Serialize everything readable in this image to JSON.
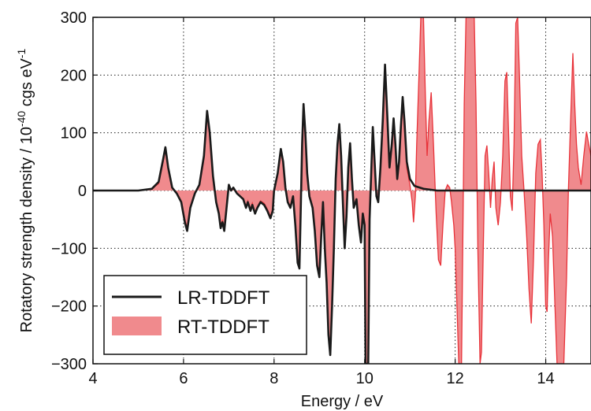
{
  "chart_data": {
    "type": "line",
    "xlabel": "Energy / eV",
    "ylabel_main": "Rotatory strength density / 10",
    "ylabel_exp": "-40",
    "ylabel_unit": " cgs eV",
    "ylabel_unit_exp": "-1",
    "xlim": [
      4,
      15
    ],
    "ylim": [
      -300,
      300
    ],
    "xticks": [
      4,
      6,
      8,
      10,
      12,
      14
    ],
    "xtick_labels": [
      "4",
      "6",
      "8",
      "10",
      "12",
      "14"
    ],
    "yticks": [
      -300,
      -200,
      -100,
      0,
      100,
      200,
      300
    ],
    "ytick_labels": [
      "−300",
      "−200",
      "−100",
      "0",
      "100",
      "200",
      "300"
    ],
    "grid": true,
    "legend_position": "bottom-left",
    "series": [
      {
        "name": "LR-TDDFT",
        "kind": "line",
        "color": "#1a1a1a",
        "points": [
          [
            4.0,
            0
          ],
          [
            5.0,
            0
          ],
          [
            5.3,
            3
          ],
          [
            5.45,
            15
          ],
          [
            5.55,
            55
          ],
          [
            5.6,
            75
          ],
          [
            5.66,
            40
          ],
          [
            5.75,
            5
          ],
          [
            5.85,
            -5
          ],
          [
            5.95,
            -20
          ],
          [
            6.03,
            -55
          ],
          [
            6.08,
            -70
          ],
          [
            6.15,
            -30
          ],
          [
            6.25,
            -5
          ],
          [
            6.35,
            10
          ],
          [
            6.45,
            60
          ],
          [
            6.52,
            138
          ],
          [
            6.58,
            100
          ],
          [
            6.65,
            25
          ],
          [
            6.72,
            -20
          ],
          [
            6.78,
            -40
          ],
          [
            6.82,
            -65
          ],
          [
            6.86,
            -55
          ],
          [
            6.9,
            -70
          ],
          [
            6.95,
            -30
          ],
          [
            7.0,
            10
          ],
          [
            7.05,
            0
          ],
          [
            7.1,
            5
          ],
          [
            7.18,
            -5
          ],
          [
            7.25,
            -10
          ],
          [
            7.32,
            -15
          ],
          [
            7.38,
            -30
          ],
          [
            7.42,
            -20
          ],
          [
            7.48,
            -35
          ],
          [
            7.52,
            -25
          ],
          [
            7.58,
            -40
          ],
          [
            7.63,
            -30
          ],
          [
            7.7,
            -20
          ],
          [
            7.78,
            -25
          ],
          [
            7.85,
            -35
          ],
          [
            7.92,
            -48
          ],
          [
            7.97,
            -35
          ],
          [
            8.0,
            0
          ],
          [
            8.08,
            30
          ],
          [
            8.15,
            72
          ],
          [
            8.2,
            50
          ],
          [
            8.25,
            5
          ],
          [
            8.3,
            -20
          ],
          [
            8.36,
            -30
          ],
          [
            8.42,
            -10
          ],
          [
            8.47,
            -60
          ],
          [
            8.52,
            -125
          ],
          [
            8.56,
            -135
          ],
          [
            8.59,
            -30
          ],
          [
            8.62,
            80
          ],
          [
            8.65,
            150
          ],
          [
            8.69,
            100
          ],
          [
            8.73,
            30
          ],
          [
            8.78,
            -10
          ],
          [
            8.85,
            -30
          ],
          [
            8.9,
            -70
          ],
          [
            8.95,
            -130
          ],
          [
            9.0,
            -150
          ],
          [
            9.04,
            -80
          ],
          [
            9.08,
            -20
          ],
          [
            9.12,
            -100
          ],
          [
            9.16,
            -160
          ],
          [
            9.2,
            -250
          ],
          [
            9.24,
            -285
          ],
          [
            9.28,
            -200
          ],
          [
            9.32,
            -100
          ],
          [
            9.36,
            20
          ],
          [
            9.4,
            80
          ],
          [
            9.44,
            115
          ],
          [
            9.48,
            60
          ],
          [
            9.52,
            -20
          ],
          [
            9.56,
            -100
          ],
          [
            9.6,
            -45
          ],
          [
            9.64,
            40
          ],
          [
            9.68,
            82
          ],
          [
            9.72,
            20
          ],
          [
            9.76,
            -30
          ],
          [
            9.82,
            -15
          ],
          [
            9.87,
            -60
          ],
          [
            9.92,
            -90
          ],
          [
            9.96,
            -40
          ],
          [
            10.0,
            -60
          ],
          [
            10.02,
            -300
          ],
          [
            10.08,
            -300
          ],
          [
            10.11,
            -50
          ],
          [
            10.15,
            40
          ],
          [
            10.18,
            110
          ],
          [
            10.22,
            50
          ],
          [
            10.26,
            -10
          ],
          [
            10.3,
            -20
          ],
          [
            10.35,
            40
          ],
          [
            10.4,
            120
          ],
          [
            10.45,
            218
          ],
          [
            10.5,
            130
          ],
          [
            10.55,
            40
          ],
          [
            10.6,
            80
          ],
          [
            10.64,
            125
          ],
          [
            10.68,
            80
          ],
          [
            10.72,
            20
          ],
          [
            10.76,
            50
          ],
          [
            10.8,
            110
          ],
          [
            10.84,
            162
          ],
          [
            10.88,
            120
          ],
          [
            10.93,
            50
          ],
          [
            11.0,
            20
          ],
          [
            11.1,
            8
          ],
          [
            11.3,
            3
          ],
          [
            11.6,
            0
          ],
          [
            12.0,
            0
          ],
          [
            15.0,
            0
          ]
        ]
      },
      {
        "name": "RT-TDDFT",
        "kind": "filled_area",
        "color": "#e8333a",
        "fill_color": "#f08a8d",
        "points": [
          [
            4.0,
            0
          ],
          [
            5.0,
            0
          ],
          [
            5.3,
            3
          ],
          [
            5.45,
            12
          ],
          [
            5.55,
            50
          ],
          [
            5.6,
            70
          ],
          [
            5.66,
            40
          ],
          [
            5.75,
            5
          ],
          [
            5.85,
            -5
          ],
          [
            5.95,
            -18
          ],
          [
            6.03,
            -50
          ],
          [
            6.08,
            -65
          ],
          [
            6.15,
            -28
          ],
          [
            6.25,
            -5
          ],
          [
            6.35,
            10
          ],
          [
            6.45,
            55
          ],
          [
            6.52,
            135
          ],
          [
            6.58,
            95
          ],
          [
            6.65,
            22
          ],
          [
            6.72,
            -20
          ],
          [
            6.78,
            -38
          ],
          [
            6.82,
            -60
          ],
          [
            6.86,
            -52
          ],
          [
            6.9,
            -65
          ],
          [
            6.95,
            -28
          ],
          [
            7.0,
            8
          ],
          [
            7.05,
            0
          ],
          [
            7.1,
            4
          ],
          [
            7.18,
            -5
          ],
          [
            7.25,
            -10
          ],
          [
            7.32,
            -14
          ],
          [
            7.38,
            -28
          ],
          [
            7.42,
            -18
          ],
          [
            7.48,
            -32
          ],
          [
            7.52,
            -22
          ],
          [
            7.58,
            -38
          ],
          [
            7.63,
            -28
          ],
          [
            7.7,
            -18
          ],
          [
            7.78,
            -22
          ],
          [
            7.85,
            -32
          ],
          [
            7.92,
            -45
          ],
          [
            7.97,
            -32
          ],
          [
            8.0,
            0
          ],
          [
            8.08,
            28
          ],
          [
            8.15,
            68
          ],
          [
            8.2,
            48
          ],
          [
            8.25,
            5
          ],
          [
            8.3,
            -18
          ],
          [
            8.36,
            -28
          ],
          [
            8.42,
            -10
          ],
          [
            8.47,
            -55
          ],
          [
            8.52,
            -118
          ],
          [
            8.56,
            -128
          ],
          [
            8.59,
            -28
          ],
          [
            8.62,
            75
          ],
          [
            8.65,
            145
          ],
          [
            8.69,
            95
          ],
          [
            8.73,
            28
          ],
          [
            8.78,
            -10
          ],
          [
            8.85,
            -28
          ],
          [
            8.9,
            -65
          ],
          [
            8.95,
            -125
          ],
          [
            9.0,
            -145
          ],
          [
            9.04,
            -75
          ],
          [
            9.08,
            -20
          ],
          [
            9.12,
            -95
          ],
          [
            9.16,
            -155
          ],
          [
            9.2,
            -245
          ],
          [
            9.24,
            -280
          ],
          [
            9.28,
            -195
          ],
          [
            9.32,
            -95
          ],
          [
            9.36,
            18
          ],
          [
            9.4,
            75
          ],
          [
            9.44,
            110
          ],
          [
            9.48,
            55
          ],
          [
            9.52,
            -20
          ],
          [
            9.56,
            -95
          ],
          [
            9.6,
            -42
          ],
          [
            9.64,
            38
          ],
          [
            9.68,
            78
          ],
          [
            9.72,
            18
          ],
          [
            9.76,
            -28
          ],
          [
            9.82,
            -14
          ],
          [
            9.87,
            -55
          ],
          [
            9.92,
            -85
          ],
          [
            9.96,
            -38
          ],
          [
            10.0,
            -55
          ],
          [
            10.02,
            -300
          ],
          [
            10.08,
            -300
          ],
          [
            10.11,
            -45
          ],
          [
            10.15,
            38
          ],
          [
            10.18,
            105
          ],
          [
            10.22,
            45
          ],
          [
            10.26,
            -10
          ],
          [
            10.3,
            -18
          ],
          [
            10.35,
            38
          ],
          [
            10.4,
            115
          ],
          [
            10.45,
            210
          ],
          [
            10.5,
            125
          ],
          [
            10.55,
            38
          ],
          [
            10.6,
            75
          ],
          [
            10.64,
            120
          ],
          [
            10.68,
            75
          ],
          [
            10.72,
            18
          ],
          [
            10.76,
            48
          ],
          [
            10.8,
            105
          ],
          [
            10.84,
            155
          ],
          [
            10.88,
            110
          ],
          [
            10.93,
            40
          ],
          [
            11.0,
            10
          ],
          [
            11.05,
            -20
          ],
          [
            11.08,
            -55
          ],
          [
            11.12,
            -10
          ],
          [
            11.15,
            80
          ],
          [
            11.2,
            200
          ],
          [
            11.24,
            300
          ],
          [
            11.3,
            300
          ],
          [
            11.34,
            170
          ],
          [
            11.38,
            60
          ],
          [
            11.42,
            120
          ],
          [
            11.47,
            170
          ],
          [
            11.52,
            80
          ],
          [
            11.58,
            -40
          ],
          [
            11.63,
            -120
          ],
          [
            11.68,
            -130
          ],
          [
            11.73,
            -60
          ],
          [
            11.78,
            0
          ],
          [
            11.83,
            10
          ],
          [
            11.88,
            5
          ],
          [
            11.92,
            -20
          ],
          [
            11.97,
            -60
          ],
          [
            12.0,
            -100
          ],
          [
            12.04,
            -200
          ],
          [
            12.08,
            -300
          ],
          [
            12.14,
            -300
          ],
          [
            12.18,
            0
          ],
          [
            12.2,
            150
          ],
          [
            12.24,
            300
          ],
          [
            12.42,
            300
          ],
          [
            12.46,
            150
          ],
          [
            12.5,
            -100
          ],
          [
            12.55,
            -300
          ],
          [
            12.58,
            -280
          ],
          [
            12.62,
            -100
          ],
          [
            12.66,
            60
          ],
          [
            12.7,
            78
          ],
          [
            12.74,
            30
          ],
          [
            12.78,
            -30
          ],
          [
            12.82,
            20
          ],
          [
            12.86,
            50
          ],
          [
            12.9,
            -30
          ],
          [
            12.95,
            -60
          ],
          [
            13.0,
            -20
          ],
          [
            13.05,
            60
          ],
          [
            13.1,
            190
          ],
          [
            13.14,
            205
          ],
          [
            13.18,
            100
          ],
          [
            13.22,
            -10
          ],
          [
            13.26,
            -35
          ],
          [
            13.3,
            80
          ],
          [
            13.34,
            290
          ],
          [
            13.38,
            300
          ],
          [
            13.42,
            200
          ],
          [
            13.47,
            60
          ],
          [
            13.52,
            0
          ],
          [
            13.58,
            -80
          ],
          [
            13.63,
            -170
          ],
          [
            13.68,
            -230
          ],
          [
            13.73,
            -120
          ],
          [
            13.78,
            30
          ],
          [
            13.83,
            80
          ],
          [
            13.88,
            88
          ],
          [
            13.92,
            30
          ],
          [
            13.96,
            -60
          ],
          [
            14.0,
            -200
          ],
          [
            14.03,
            -210
          ],
          [
            14.06,
            -120
          ],
          [
            14.1,
            -40
          ],
          [
            14.15,
            -80
          ],
          [
            14.2,
            -190
          ],
          [
            14.25,
            -300
          ],
          [
            14.4,
            -300
          ],
          [
            14.46,
            -150
          ],
          [
            14.5,
            0
          ],
          [
            14.55,
            120
          ],
          [
            14.6,
            238
          ],
          [
            14.64,
            150
          ],
          [
            14.68,
            80
          ],
          [
            14.72,
            40
          ],
          [
            14.78,
            10
          ],
          [
            14.84,
            60
          ],
          [
            14.9,
            102
          ],
          [
            14.95,
            80
          ],
          [
            15.0,
            60
          ]
        ]
      }
    ]
  }
}
